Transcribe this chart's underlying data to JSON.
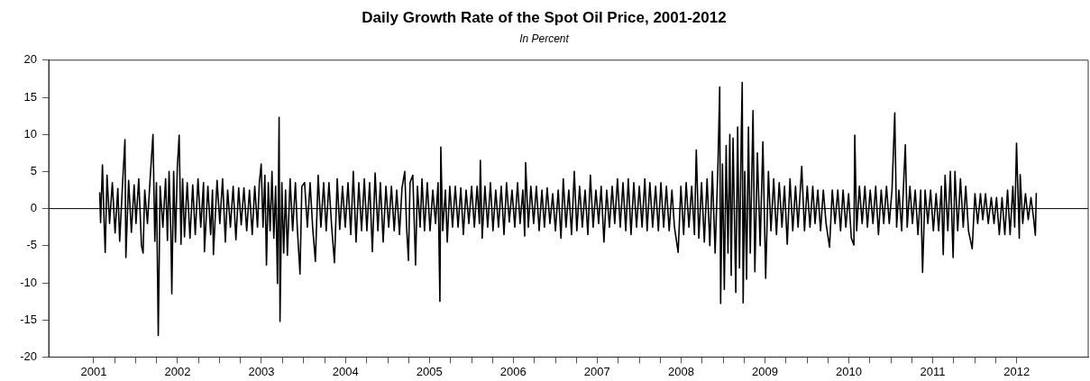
{
  "chart_data": {
    "type": "line",
    "title": "Daily Growth Rate of the Spot Oil Price, 2001-2012",
    "subtitle": "In Percent",
    "xlim": [
      "2000-12-17",
      "2013-05-08"
    ],
    "xticks": [
      {
        "value": "2001-07-01",
        "label": "2001"
      },
      {
        "value": "2001-10-01",
        "label": null
      },
      {
        "value": "2002-01-01",
        "label": null
      },
      {
        "value": "2002-04-01",
        "label": null
      },
      {
        "value": "2002-07-01",
        "label": "2002"
      },
      {
        "value": "2002-10-01",
        "label": null
      },
      {
        "value": "2003-01-01",
        "label": null
      },
      {
        "value": "2003-04-01",
        "label": null
      },
      {
        "value": "2003-07-01",
        "label": "2003"
      },
      {
        "value": "2003-10-01",
        "label": null
      },
      {
        "value": "2004-01-01",
        "label": null
      },
      {
        "value": "2004-04-01",
        "label": null
      },
      {
        "value": "2004-07-01",
        "label": "2004"
      },
      {
        "value": "2004-10-01",
        "label": null
      },
      {
        "value": "2005-01-01",
        "label": null
      },
      {
        "value": "2005-04-01",
        "label": null
      },
      {
        "value": "2005-07-01",
        "label": "2005"
      },
      {
        "value": "2005-10-01",
        "label": null
      },
      {
        "value": "2006-01-01",
        "label": null
      },
      {
        "value": "2006-04-01",
        "label": null
      },
      {
        "value": "2006-07-01",
        "label": "2006"
      },
      {
        "value": "2006-10-01",
        "label": null
      },
      {
        "value": "2007-01-01",
        "label": null
      },
      {
        "value": "2007-04-01",
        "label": null
      },
      {
        "value": "2007-07-01",
        "label": "2007"
      },
      {
        "value": "2007-10-01",
        "label": null
      },
      {
        "value": "2008-01-01",
        "label": null
      },
      {
        "value": "2008-04-01",
        "label": null
      },
      {
        "value": "2008-07-01",
        "label": "2008"
      },
      {
        "value": "2008-10-01",
        "label": null
      },
      {
        "value": "2009-01-01",
        "label": null
      },
      {
        "value": "2009-04-01",
        "label": null
      },
      {
        "value": "2009-07-01",
        "label": "2009"
      },
      {
        "value": "2009-10-01",
        "label": null
      },
      {
        "value": "2010-01-01",
        "label": null
      },
      {
        "value": "2010-04-01",
        "label": null
      },
      {
        "value": "2010-07-01",
        "label": "2010"
      },
      {
        "value": "2010-10-01",
        "label": null
      },
      {
        "value": "2011-01-01",
        "label": null
      },
      {
        "value": "2011-04-01",
        "label": null
      },
      {
        "value": "2011-07-01",
        "label": "2011"
      },
      {
        "value": "2011-10-01",
        "label": null
      },
      {
        "value": "2012-01-01",
        "label": null
      },
      {
        "value": "2012-04-01",
        "label": null
      },
      {
        "value": "2012-07-01",
        "label": "2012"
      }
    ],
    "ylim": [
      -20,
      20
    ],
    "yticks": [
      -20,
      -15,
      -10,
      -5,
      0,
      5,
      10,
      15,
      20
    ],
    "grid": false,
    "legend": false,
    "marker": "none",
    "line_style": "solid",
    "ref_lines": [
      {
        "axis": "y",
        "value": 0,
        "label": null,
        "color": "#000000"
      }
    ],
    "series": [
      {
        "color": "#000000",
        "x": [
          "2001-07-27",
          "2001-07-31",
          "2001-08-08",
          "2001-08-16",
          "2001-08-20",
          "2001-08-28",
          "2001-09-08",
          "2001-09-20",
          "2001-10-02",
          "2001-10-14",
          "2001-10-22",
          "2001-11-03",
          "2001-11-14",
          "2001-11-18",
          "2001-11-30",
          "2001-12-12",
          "2001-12-24",
          "2002-01-01",
          "2002-01-13",
          "2002-01-25",
          "2002-02-01",
          "2002-02-08",
          "2002-02-20",
          "2002-03-04",
          "2002-03-16",
          "2002-03-24",
          "2002-03-31",
          "2002-04-08",
          "2002-04-16",
          "2002-04-28",
          "2002-05-10",
          "2002-05-18",
          "2002-05-25",
          "2002-06-02",
          "2002-06-06",
          "2002-06-14",
          "2002-06-22",
          "2002-06-30",
          "2002-07-08",
          "2002-07-16",
          "2002-07-23",
          "2002-07-31",
          "2002-08-12",
          "2002-08-24",
          "2002-09-05",
          "2002-09-16",
          "2002-09-28",
          "2002-10-10",
          "2002-10-22",
          "2002-10-26",
          "2002-11-10",
          "2002-11-22",
          "2002-11-30",
          "2002-12-04",
          "2002-12-20",
          "2003-01-01",
          "2003-01-13",
          "2003-01-25",
          "2003-02-04",
          "2003-02-16",
          "2003-02-28",
          "2003-03-12",
          "2003-03-24",
          "2003-04-04",
          "2003-04-16",
          "2003-04-28",
          "2003-05-10",
          "2003-05-22",
          "2003-06-02",
          "2003-06-14",
          "2003-06-22",
          "2003-06-30",
          "2003-07-08",
          "2003-07-16",
          "2003-07-23",
          "2003-07-31",
          "2003-08-08",
          "2003-08-16",
          "2003-08-24",
          "2003-09-01",
          "2003-09-09",
          "2003-09-16",
          "2003-09-20",
          "2003-09-28",
          "2003-10-06",
          "2003-10-14",
          "2003-10-22",
          "2003-11-03",
          "2003-11-14",
          "2003-11-26",
          "2003-12-04",
          "2003-12-16",
          "2003-12-24",
          "2004-01-05",
          "2004-01-17",
          "2004-01-29",
          "2004-02-09",
          "2004-02-21",
          "2004-03-04",
          "2004-03-16",
          "2004-03-28",
          "2004-04-08",
          "2004-04-20",
          "2004-05-02",
          "2004-05-14",
          "2004-05-26",
          "2004-06-06",
          "2004-06-18",
          "2004-06-30",
          "2004-07-12",
          "2004-07-24",
          "2004-08-04",
          "2004-08-16",
          "2004-08-28",
          "2004-09-09",
          "2004-09-21",
          "2004-10-02",
          "2004-10-14",
          "2004-10-26",
          "2004-11-07",
          "2004-11-19",
          "2004-11-30",
          "2004-12-12",
          "2004-12-24",
          "2005-01-05",
          "2005-01-17",
          "2005-01-29",
          "2005-02-09",
          "2005-02-21",
          "2005-03-04",
          "2005-03-16",
          "2005-03-24",
          "2005-04-01",
          "2005-04-08",
          "2005-04-20",
          "2005-05-02",
          "2005-05-10",
          "2005-05-22",
          "2005-05-30",
          "2005-06-10",
          "2005-06-22",
          "2005-07-04",
          "2005-07-16",
          "2005-07-28",
          "2005-08-08",
          "2005-08-16",
          "2005-08-20",
          "2005-08-28",
          "2005-09-09",
          "2005-09-17",
          "2005-09-28",
          "2005-10-10",
          "2005-10-22",
          "2005-11-03",
          "2005-11-15",
          "2005-11-26",
          "2005-12-08",
          "2005-12-20",
          "2006-01-01",
          "2006-01-13",
          "2006-01-25",
          "2006-02-04",
          "2006-02-08",
          "2006-02-16",
          "2006-02-28",
          "2006-03-12",
          "2006-03-24",
          "2006-04-04",
          "2006-04-16",
          "2006-04-28",
          "2006-05-10",
          "2006-05-22",
          "2006-06-02",
          "2006-06-14",
          "2006-06-26",
          "2006-07-08",
          "2006-07-20",
          "2006-07-31",
          "2006-08-12",
          "2006-08-20",
          "2006-08-24",
          "2006-09-05",
          "2006-09-16",
          "2006-09-28",
          "2006-10-10",
          "2006-10-22",
          "2006-11-03",
          "2006-11-14",
          "2006-11-26",
          "2006-12-08",
          "2006-12-20",
          "2007-01-01",
          "2007-01-13",
          "2007-01-25",
          "2007-02-04",
          "2007-02-16",
          "2007-02-28",
          "2007-03-12",
          "2007-03-24",
          "2007-04-04",
          "2007-04-16",
          "2007-04-28",
          "2007-05-10",
          "2007-05-22",
          "2007-06-02",
          "2007-06-14",
          "2007-06-26",
          "2007-07-08",
          "2007-07-19",
          "2007-07-31",
          "2007-08-12",
          "2007-08-24",
          "2007-09-05",
          "2007-09-16",
          "2007-09-28",
          "2007-10-10",
          "2007-10-22",
          "2007-11-03",
          "2007-11-14",
          "2007-11-26",
          "2007-12-08",
          "2007-12-20",
          "2008-01-01",
          "2008-01-13",
          "2008-01-25",
          "2008-02-04",
          "2008-02-16",
          "2008-02-28",
          "2008-03-12",
          "2008-03-24",
          "2008-04-04",
          "2008-04-16",
          "2008-04-28",
          "2008-05-10",
          "2008-05-22",
          "2008-06-02",
          "2008-06-18",
          "2008-06-30",
          "2008-07-12",
          "2008-07-23",
          "2008-08-04",
          "2008-08-16",
          "2008-08-28",
          "2008-09-05",
          "2008-09-16",
          "2008-09-28",
          "2008-10-10",
          "2008-10-22",
          "2008-11-03",
          "2008-11-14",
          "2008-11-26",
          "2008-12-08",
          "2008-12-16",
          "2008-12-20",
          "2008-12-28",
          "2009-01-05",
          "2009-01-13",
          "2009-01-21",
          "2009-01-29",
          "2009-02-04",
          "2009-02-12",
          "2009-02-24",
          "2009-03-04",
          "2009-03-12",
          "2009-03-20",
          "2009-03-24",
          "2009-03-28",
          "2009-04-04",
          "2009-04-12",
          "2009-04-20",
          "2009-04-28",
          "2009-05-10",
          "2009-05-18",
          "2009-05-29",
          "2009-06-10",
          "2009-06-22",
          "2009-07-04",
          "2009-07-16",
          "2009-07-27",
          "2009-08-08",
          "2009-08-20",
          "2009-09-01",
          "2009-09-13",
          "2009-09-24",
          "2009-10-06",
          "2009-10-18",
          "2009-10-30",
          "2009-11-11",
          "2009-11-22",
          "2009-12-08",
          "2009-12-20",
          "2010-01-01",
          "2010-01-13",
          "2010-01-25",
          "2010-02-04",
          "2010-02-16",
          "2010-02-28",
          "2010-03-12",
          "2010-03-24",
          "2010-04-08",
          "2010-04-20",
          "2010-05-02",
          "2010-05-14",
          "2010-05-26",
          "2010-06-06",
          "2010-06-18",
          "2010-06-30",
          "2010-07-12",
          "2010-07-23",
          "2010-07-27",
          "2010-08-04",
          "2010-08-16",
          "2010-08-28",
          "2010-09-09",
          "2010-09-20",
          "2010-10-02",
          "2010-10-14",
          "2010-10-26",
          "2010-11-07",
          "2010-11-19",
          "2010-11-30",
          "2010-12-12",
          "2010-12-24",
          "2011-01-05",
          "2011-01-17",
          "2011-01-25",
          "2011-02-04",
          "2011-02-16",
          "2011-02-24",
          "2011-03-04",
          "2011-03-12",
          "2011-03-24",
          "2011-04-04",
          "2011-04-16",
          "2011-04-28",
          "2011-05-10",
          "2011-05-18",
          "2011-05-29",
          "2011-06-10",
          "2011-06-22",
          "2011-07-04",
          "2011-07-16",
          "2011-07-27",
          "2011-08-08",
          "2011-08-16",
          "2011-08-24",
          "2011-09-05",
          "2011-09-16",
          "2011-09-28",
          "2011-10-06",
          "2011-10-18",
          "2011-10-30",
          "2011-11-11",
          "2011-11-22",
          "2011-12-04",
          "2011-12-20",
          "2012-01-01",
          "2012-01-13",
          "2012-01-25",
          "2012-02-04",
          "2012-02-16",
          "2012-02-28",
          "2012-03-12",
          "2012-03-24",
          "2012-04-04",
          "2012-04-16",
          "2012-04-28",
          "2012-05-10",
          "2012-05-22",
          "2012-06-02",
          "2012-06-14",
          "2012-06-22",
          "2012-06-30",
          "2012-07-12",
          "2012-07-16",
          "2012-07-27",
          "2012-08-08",
          "2012-08-20",
          "2012-09-01",
          "2012-09-13",
          "2012-09-20",
          "2012-09-24"
        ],
        "values": [
          2.2,
          -1.9,
          5.9,
          -2.5,
          -5.9,
          4.5,
          -2.0,
          3.5,
          -3.3,
          2.7,
          -4.4,
          3.0,
          9.3,
          -6.6,
          3.8,
          -3.2,
          3.2,
          -2.0,
          4.0,
          -5.0,
          -6.0,
          2.5,
          -2.0,
          4.2,
          10.0,
          -4.4,
          3.5,
          -17.1,
          3.0,
          -2.5,
          4.0,
          -4.3,
          5.0,
          -3.5,
          -11.5,
          5.0,
          -4.5,
          5.6,
          9.9,
          -4.8,
          4.0,
          -3.8,
          3.5,
          -4.0,
          3.2,
          -3.5,
          4.0,
          -2.5,
          3.5,
          -5.8,
          3.0,
          -3.5,
          2.5,
          -6.2,
          3.8,
          -2.0,
          4.0,
          -4.5,
          2.5,
          -2.5,
          3.0,
          -4.2,
          2.8,
          -2.2,
          2.8,
          -3.0,
          2.5,
          -3.5,
          3.0,
          -2.5,
          3.5,
          6.0,
          -2.5,
          4.5,
          -7.6,
          3.5,
          -3.0,
          5.0,
          -4.0,
          3.0,
          -10.1,
          12.3,
          -15.2,
          3.5,
          -6.0,
          2.5,
          -6.3,
          4.0,
          -3.0,
          3.5,
          -2.5,
          -8.8,
          3.0,
          3.5,
          -2.5,
          3.5,
          -2.5,
          -7.1,
          4.5,
          -2.5,
          3.5,
          -3.0,
          3.5,
          -2.5,
          -7.3,
          4.0,
          -2.8,
          3.0,
          -2.5,
          3.5,
          -3.5,
          5.0,
          -4.5,
          3.5,
          -3.0,
          4.0,
          -3.0,
          3.5,
          -5.8,
          4.8,
          -3.0,
          3.5,
          -4.5,
          3.0,
          -2.5,
          3.0,
          -3.0,
          2.5,
          -3.5,
          2.8,
          5.0,
          -2.5,
          -7.0,
          3.5,
          4.5,
          -7.6,
          3.0,
          -2.5,
          4.0,
          -3.0,
          3.5,
          -3.0,
          2.5,
          -2.0,
          3.5,
          -12.5,
          8.3,
          -3.0,
          2.5,
          -4.5,
          3.0,
          -2.5,
          3.0,
          -2.5,
          2.8,
          -3.5,
          2.5,
          -2.0,
          3.0,
          -2.5,
          3.0,
          -2.0,
          6.5,
          -4.0,
          3.0,
          -2.5,
          3.5,
          -3.0,
          2.5,
          -2.5,
          3.0,
          -3.5,
          3.5,
          -1.8,
          2.5,
          -2.5,
          3.5,
          -2.0,
          2.5,
          -3.7,
          6.2,
          -2.5,
          3.0,
          -2.0,
          3.0,
          -3.0,
          2.5,
          -2.5,
          2.8,
          -2.0,
          2.0,
          -3.0,
          2.5,
          -4.0,
          4.0,
          -2.5,
          2.5,
          -3.5,
          5.0,
          -3.0,
          3.0,
          -2.5,
          2.5,
          -3.5,
          4.5,
          -2.5,
          2.5,
          -2.0,
          3.0,
          -4.5,
          2.5,
          -2.5,
          3.0,
          -2.0,
          4.0,
          -2.5,
          3.5,
          -3.0,
          4.0,
          -3.5,
          3.5,
          -2.5,
          3.0,
          -2.5,
          4.0,
          -3.0,
          3.5,
          -2.5,
          3.0,
          -3.0,
          3.5,
          -2.5,
          3.0,
          -3.0,
          2.5,
          -2.5,
          -5.9,
          3.0,
          -3.5,
          3.5,
          -2.5,
          3.0,
          -3.5,
          7.9,
          -4.0,
          3.5,
          -4.5,
          4.0,
          -5.0,
          5.0,
          -6.0,
          5.5,
          16.4,
          -12.8,
          6.0,
          -10.9,
          8.5,
          -6.0,
          10.0,
          -9.0,
          9.5,
          -11.3,
          11.0,
          -8.0,
          10.2,
          17.0,
          -12.7,
          5.0,
          -9.5,
          11.0,
          -6.0,
          13.2,
          -8.5,
          7.5,
          -5.0,
          9.0,
          -9.4,
          5.0,
          -3.0,
          4.0,
          -3.5,
          3.5,
          -2.5,
          3.0,
          -4.8,
          4.0,
          -3.0,
          3.0,
          -2.5,
          5.7,
          -3.0,
          3.0,
          -2.5,
          3.0,
          -2.0,
          2.5,
          -3.0,
          2.5,
          -2.0,
          -5.2,
          2.5,
          -2.0,
          2.5,
          -3.0,
          2.5,
          -2.5,
          2.0,
          -4.0,
          -4.9,
          9.9,
          -3.0,
          3.0,
          -2.0,
          3.0,
          -2.5,
          2.5,
          -2.0,
          3.0,
          -3.5,
          2.5,
          -2.0,
          3.0,
          -2.0,
          2.5,
          12.9,
          -2.5,
          2.5,
          -3.0,
          3.0,
          8.6,
          -2.5,
          3.0,
          -2.0,
          2.5,
          -3.5,
          2.5,
          -8.6,
          2.5,
          -2.0,
          2.5,
          -3.0,
          2.0,
          -3.0,
          3.0,
          -6.2,
          4.5,
          -3.0,
          5.0,
          -6.6,
          5.0,
          -3.0,
          4.0,
          -2.5,
          3.0,
          -3.0,
          -5.4,
          2.0,
          -2.0,
          2.0,
          -1.5,
          2.0,
          -2.0,
          1.5,
          -2.0,
          1.5,
          -3.5,
          1.5,
          -3.5,
          2.5,
          -3.5,
          3.0,
          -2.5,
          8.8,
          -4.0,
          4.6,
          -2.0,
          2.0,
          -1.5,
          1.5,
          -1.5,
          -3.6,
          2.1
        ]
      }
    ]
  }
}
